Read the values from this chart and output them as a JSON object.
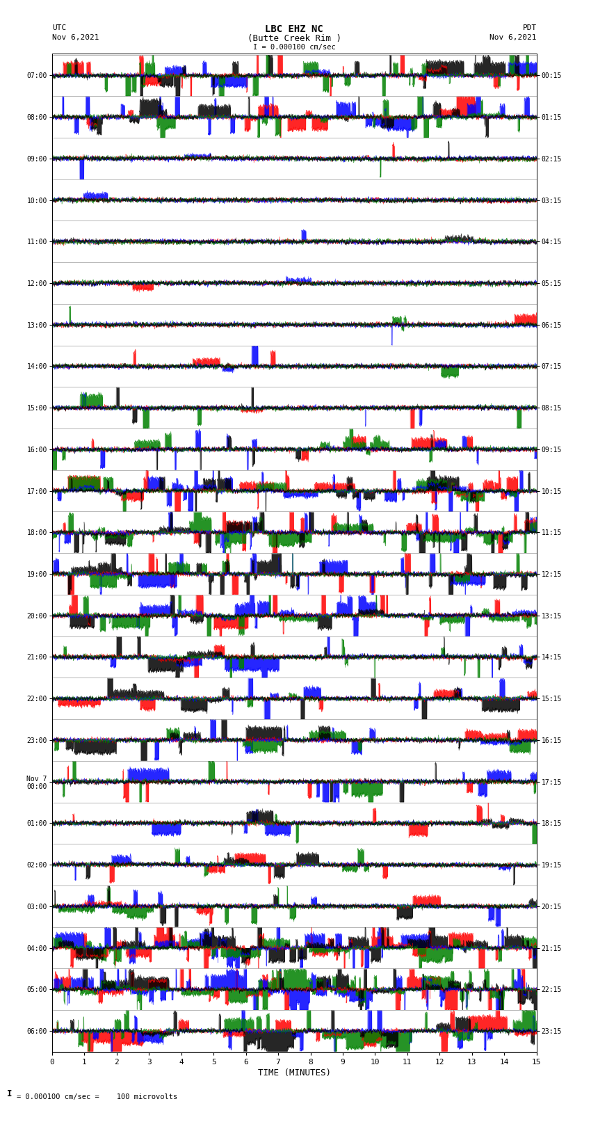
{
  "title_line1": "LBC EHZ NC",
  "title_line2": "(Butte Creek Rim )",
  "scale_label": "I = 0.000100 cm/sec",
  "left_label_top": "UTC",
  "left_label_date": "Nov 6,2021",
  "right_label_top": "PDT",
  "right_label_date": "Nov 6,2021",
  "bottom_label": "TIME (MINUTES)",
  "footnote": "= 0.000100 cm/sec =    100 microvolts",
  "xlabel_ticks": [
    0,
    1,
    2,
    3,
    4,
    5,
    6,
    7,
    8,
    9,
    10,
    11,
    12,
    13,
    14,
    15
  ],
  "utc_labels": [
    "07:00",
    "08:00",
    "09:00",
    "10:00",
    "11:00",
    "12:00",
    "13:00",
    "14:00",
    "15:00",
    "16:00",
    "17:00",
    "18:00",
    "19:00",
    "20:00",
    "21:00",
    "22:00",
    "23:00",
    "Nov 7\n00:00",
    "01:00",
    "02:00",
    "03:00",
    "04:00",
    "05:00",
    "06:00"
  ],
  "pdt_labels": [
    "00:15",
    "01:15",
    "02:15",
    "03:15",
    "04:15",
    "05:15",
    "06:15",
    "07:15",
    "08:15",
    "09:15",
    "10:15",
    "11:15",
    "12:15",
    "13:15",
    "14:15",
    "15:15",
    "16:15",
    "17:15",
    "18:15",
    "19:15",
    "20:15",
    "21:15",
    "22:15",
    "23:15"
  ],
  "n_rows": 24,
  "minutes": 15,
  "bg_color": "#ffffff",
  "trace_colors": [
    "#ff0000",
    "#0000ff",
    "#008000",
    "#000000"
  ],
  "row_amplitudes": [
    8.0,
    7.0,
    0.8,
    0.6,
    0.6,
    0.6,
    1.0,
    1.2,
    1.5,
    3.5,
    6.0,
    10.0,
    9.0,
    5.0,
    4.0,
    4.0,
    3.0,
    3.0,
    2.5,
    2.5,
    2.5,
    10.0,
    10.0,
    9.0
  ],
  "row_drift": [
    0.3,
    0.2,
    0.05,
    0.04,
    0.04,
    0.04,
    0.05,
    0.06,
    0.08,
    0.15,
    0.25,
    0.4,
    0.35,
    0.2,
    0.15,
    0.15,
    0.12,
    0.12,
    0.1,
    0.1,
    0.1,
    0.4,
    0.4,
    0.35
  ]
}
